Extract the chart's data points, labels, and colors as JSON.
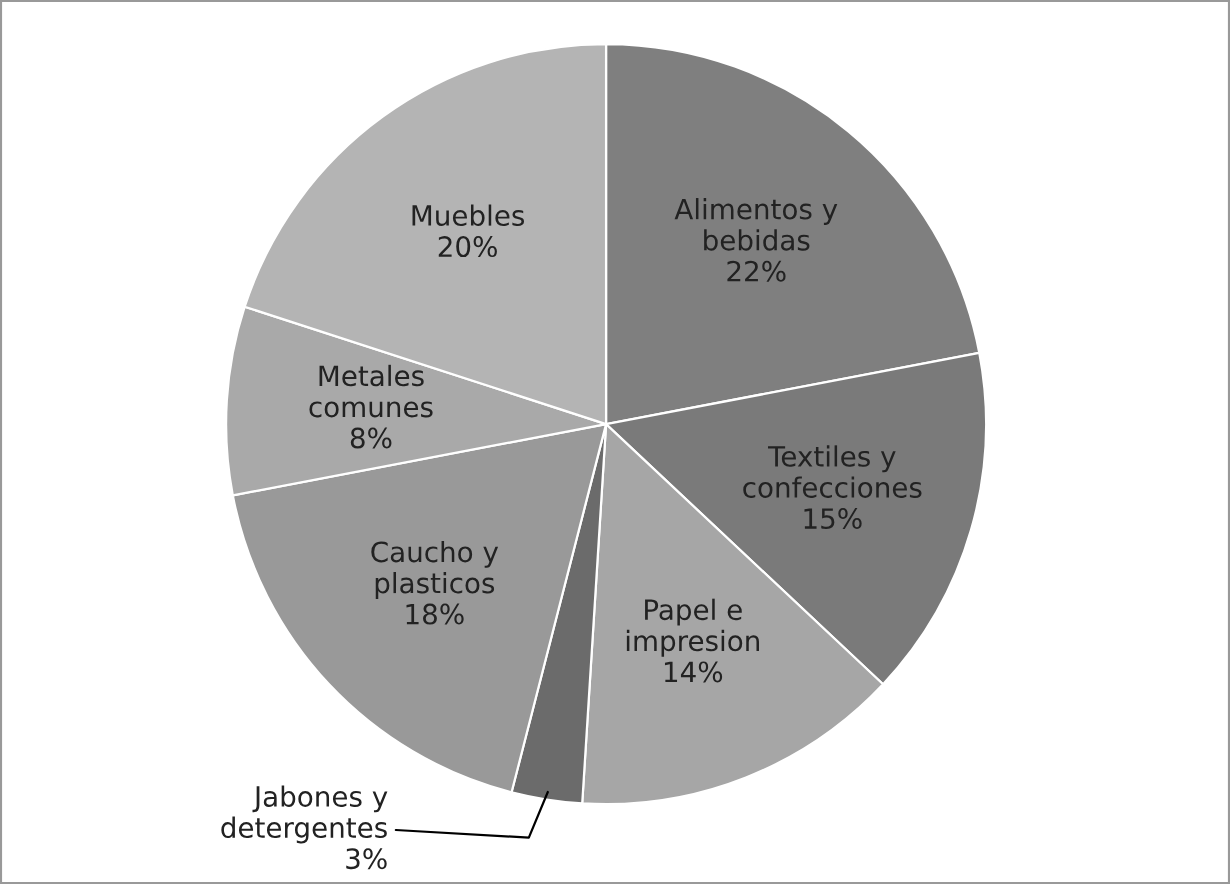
{
  "chart_data": {
    "type": "pie",
    "categories": [
      "Alimentos y\nbebidas",
      "Textiles y\nconfecciones",
      "Papel e\nimpresion",
      "Jabones y\ndetergentes",
      "Caucho y\nplasticos",
      "Metales\ncomunes",
      "Muebles"
    ],
    "values": [
      22,
      15,
      14,
      3,
      18,
      8,
      20
    ],
    "colors": [
      "#7f7f7f",
      "#7a7a7a",
      "#a6a6a6",
      "#6b6b6b",
      "#999999",
      "#a9a9a9",
      "#b4b4b4"
    ],
    "value_labels": [
      "22%",
      "15%",
      "14%",
      "3%",
      "18%",
      "8%",
      "20%"
    ],
    "legend": false
  }
}
